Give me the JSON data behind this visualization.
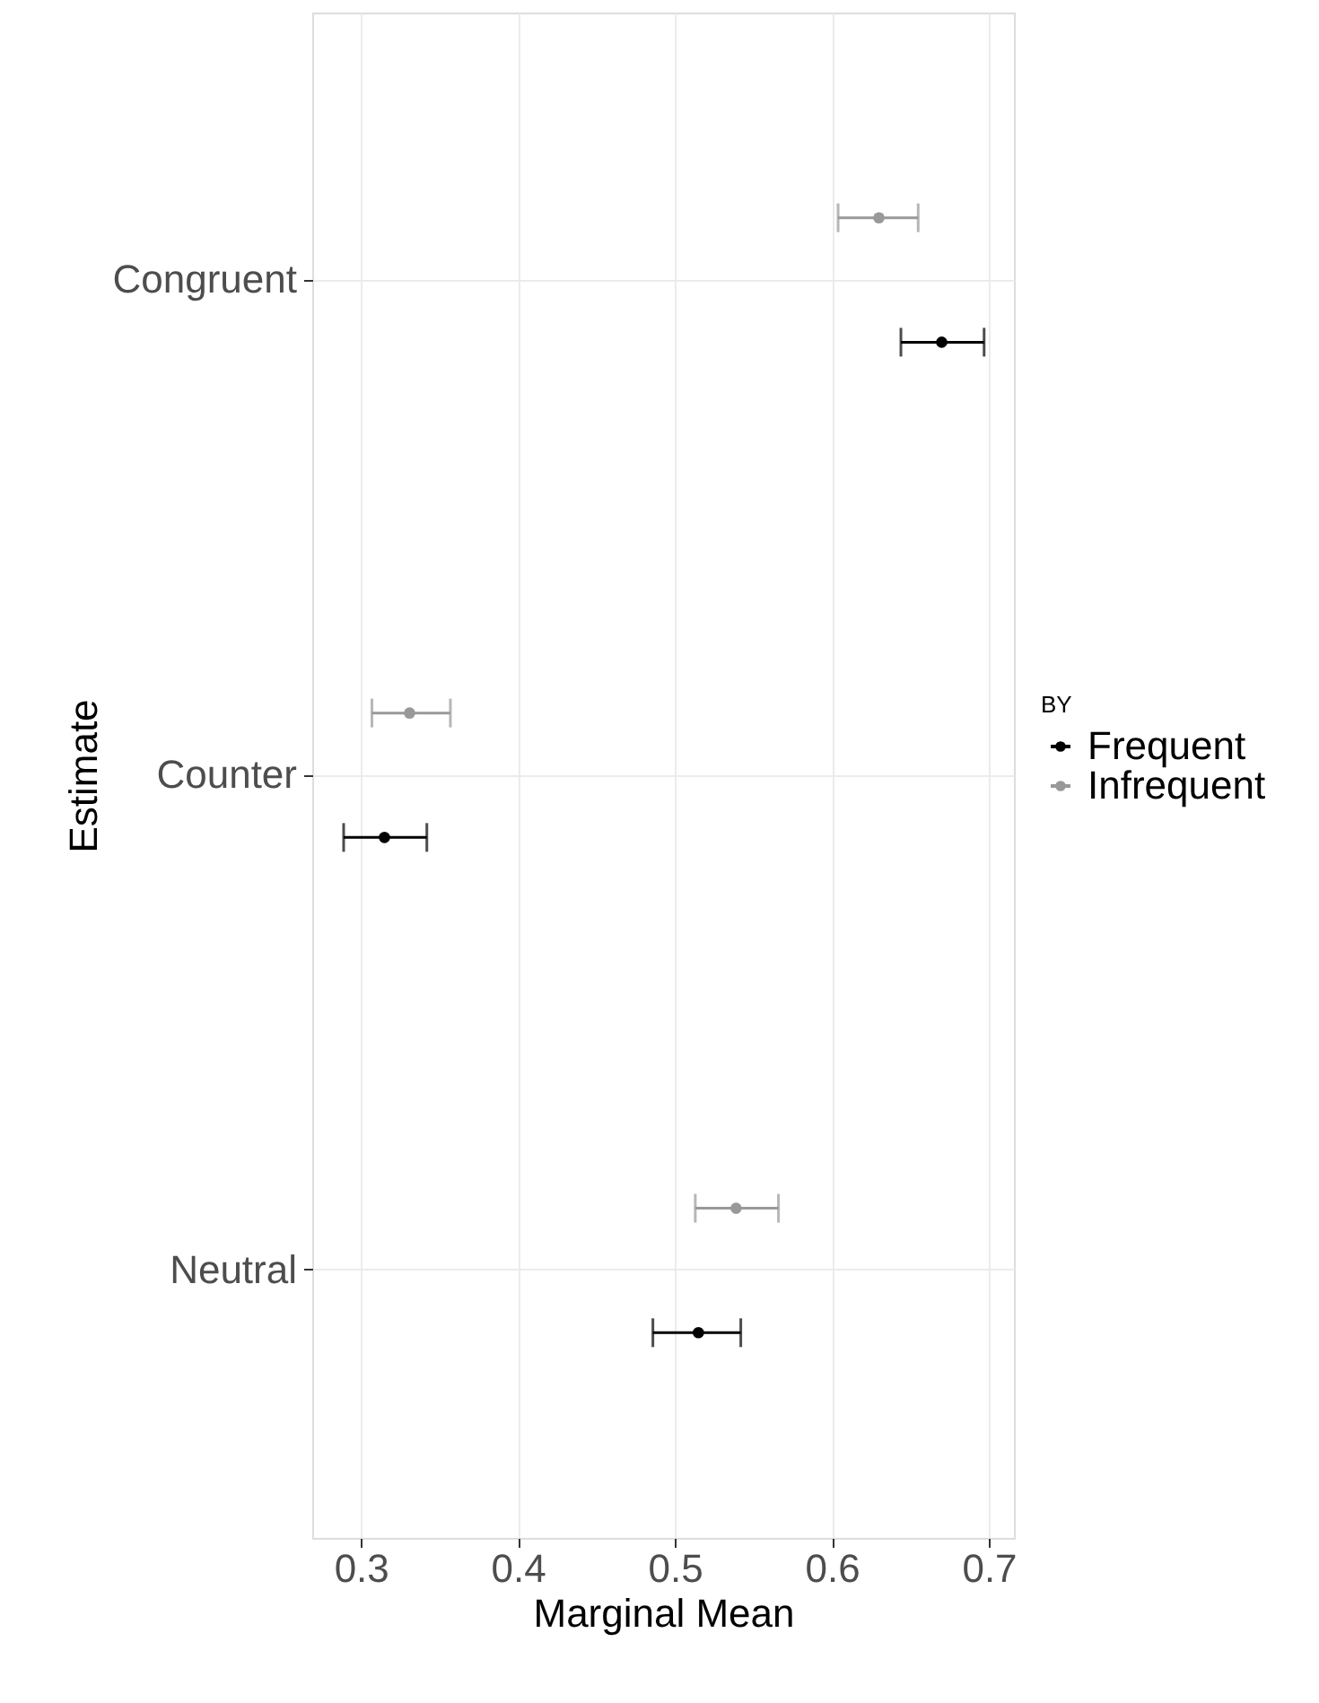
{
  "chart_data": {
    "type": "scatter",
    "orientation": "horizontal",
    "xlabel": "Marginal Mean",
    "ylabel": "Estimate",
    "legend_title": "BY",
    "legend": "right",
    "grid": true,
    "marker": "circle",
    "categories": [
      "Congruent",
      "Counter",
      "Neutral"
    ],
    "xlim": [
      0.269,
      0.716
    ],
    "xticks": [
      0.3,
      0.4,
      0.5,
      0.6,
      0.7
    ],
    "series": [
      {
        "name": "Frequent",
        "color": "#000000",
        "values": [
          0.67,
          0.315,
          0.515
        ],
        "errors": [
          [
            0.644,
            0.697
          ],
          [
            0.289,
            0.342
          ],
          [
            0.486,
            0.542
          ]
        ]
      },
      {
        "name": "Infrequent",
        "color": "#999999",
        "values": [
          0.63,
          0.331,
          0.539
        ],
        "errors": [
          [
            0.604,
            0.655
          ],
          [
            0.307,
            0.357
          ],
          [
            0.513,
            0.566
          ]
        ]
      }
    ]
  }
}
